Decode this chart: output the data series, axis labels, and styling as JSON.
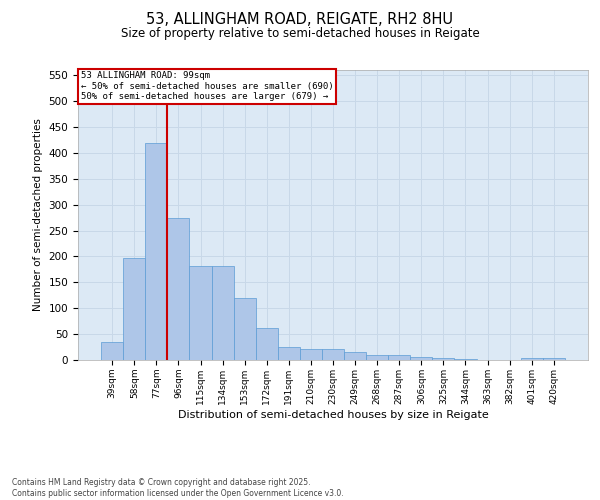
{
  "title1": "53, ALLINGHAM ROAD, REIGATE, RH2 8HU",
  "title2": "Size of property relative to semi-detached houses in Reigate",
  "xlabel": "Distribution of semi-detached houses by size in Reigate",
  "ylabel": "Number of semi-detached properties",
  "categories": [
    "39sqm",
    "58sqm",
    "77sqm",
    "96sqm",
    "115sqm",
    "134sqm",
    "153sqm",
    "172sqm",
    "191sqm",
    "210sqm",
    "230sqm",
    "249sqm",
    "268sqm",
    "287sqm",
    "306sqm",
    "325sqm",
    "344sqm",
    "363sqm",
    "382sqm",
    "401sqm",
    "420sqm"
  ],
  "values": [
    35,
    197,
    420,
    275,
    181,
    181,
    120,
    62,
    25,
    22,
    22,
    16,
    10,
    10,
    5,
    3,
    2,
    0,
    0,
    4,
    3
  ],
  "bar_color": "#aec6e8",
  "bar_edge_color": "#5b9bd5",
  "grid_color": "#c8d8e8",
  "background_color": "#dce9f5",
  "vline_color": "#cc0000",
  "annotation_title": "53 ALLINGHAM ROAD: 99sqm",
  "annotation_line1": "← 50% of semi-detached houses are smaller (690)",
  "annotation_line2": "50% of semi-detached houses are larger (679) →",
  "annotation_box_color": "#ffffff",
  "annotation_box_edge": "#cc0000",
  "ylim": [
    0,
    560
  ],
  "yticks": [
    0,
    50,
    100,
    150,
    200,
    250,
    300,
    350,
    400,
    450,
    500,
    550
  ],
  "footnote1": "Contains HM Land Registry data © Crown copyright and database right 2025.",
  "footnote2": "Contains public sector information licensed under the Open Government Licence v3.0."
}
